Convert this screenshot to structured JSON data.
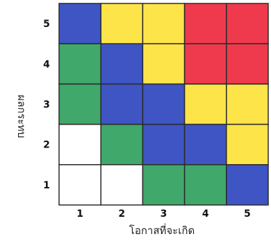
{
  "chart_data": {
    "type": "heatmap",
    "title": "",
    "xlabel": "โอกาสที่จะเกิด",
    "ylabel": "ผลกระทบ",
    "x_categories": [
      "1",
      "2",
      "3",
      "4",
      "5"
    ],
    "y_categories": [
      "1",
      "2",
      "3",
      "4",
      "5"
    ],
    "grid": true,
    "colors": {
      "white": "#ffffff",
      "green": "#3fa86a",
      "blue": "#3f55c4",
      "yellow": "#fde449",
      "red": "#ef3a4d"
    },
    "cells": [
      {
        "x": "1",
        "y": "5",
        "color": "blue"
      },
      {
        "x": "2",
        "y": "5",
        "color": "yellow"
      },
      {
        "x": "3",
        "y": "5",
        "color": "yellow"
      },
      {
        "x": "4",
        "y": "5",
        "color": "red"
      },
      {
        "x": "5",
        "y": "5",
        "color": "red"
      },
      {
        "x": "1",
        "y": "4",
        "color": "green"
      },
      {
        "x": "2",
        "y": "4",
        "color": "blue"
      },
      {
        "x": "3",
        "y": "4",
        "color": "yellow"
      },
      {
        "x": "4",
        "y": "4",
        "color": "red"
      },
      {
        "x": "5",
        "y": "4",
        "color": "red"
      },
      {
        "x": "1",
        "y": "3",
        "color": "green"
      },
      {
        "x": "2",
        "y": "3",
        "color": "blue"
      },
      {
        "x": "3",
        "y": "3",
        "color": "blue"
      },
      {
        "x": "4",
        "y": "3",
        "color": "yellow"
      },
      {
        "x": "5",
        "y": "3",
        "color": "yellow"
      },
      {
        "x": "1",
        "y": "2",
        "color": "white"
      },
      {
        "x": "2",
        "y": "2",
        "color": "green"
      },
      {
        "x": "3",
        "y": "2",
        "color": "blue"
      },
      {
        "x": "4",
        "y": "2",
        "color": "blue"
      },
      {
        "x": "5",
        "y": "2",
        "color": "yellow"
      },
      {
        "x": "1",
        "y": "1",
        "color": "white"
      },
      {
        "x": "2",
        "y": "1",
        "color": "white"
      },
      {
        "x": "3",
        "y": "1",
        "color": "green"
      },
      {
        "x": "4",
        "y": "1",
        "color": "green"
      },
      {
        "x": "5",
        "y": "1",
        "color": "blue"
      }
    ]
  }
}
